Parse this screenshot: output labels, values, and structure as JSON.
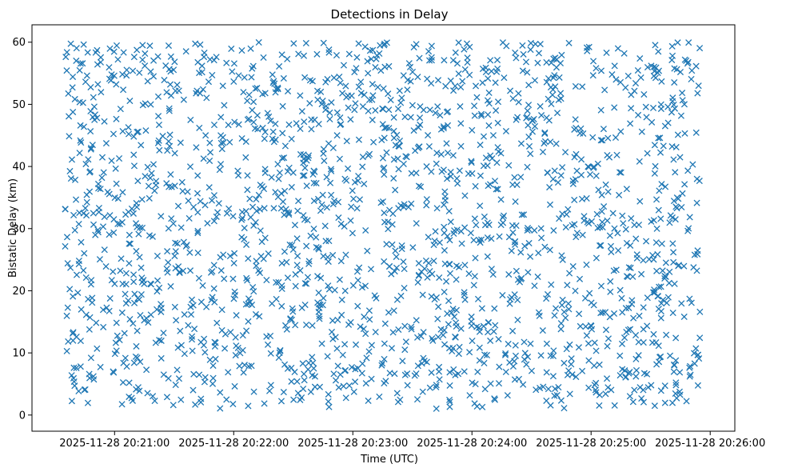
{
  "chart_data": {
    "type": "scatter",
    "title": "Detections in Delay",
    "xlabel": "Time (UTC)",
    "ylabel": "Bistatic Delay (km)",
    "marker": "x",
    "color": "#1f77b4",
    "x_tick_labels": [
      "2025-11-28 20:21:00",
      "2025-11-28 20:22:00",
      "2025-11-28 20:23:00",
      "2025-11-28 20:24:00",
      "2025-11-28 20:25:00",
      "2025-11-28 20:26:00"
    ],
    "x_tick_seconds": [
      60,
      120,
      180,
      240,
      300,
      360
    ],
    "xlim_seconds": [
      18.4,
      372.4
    ],
    "y_ticks": [
      0,
      10,
      20,
      30,
      40,
      50,
      60
    ],
    "ylim": [
      -2.6,
      62.8
    ],
    "point_count": 2000,
    "data_x_range_seconds": [
      35,
      355
    ],
    "data_y_range": [
      1,
      60
    ],
    "note_points": "Dense, roughly uniform cloud of ~2000 detections across the full time and delay range"
  }
}
